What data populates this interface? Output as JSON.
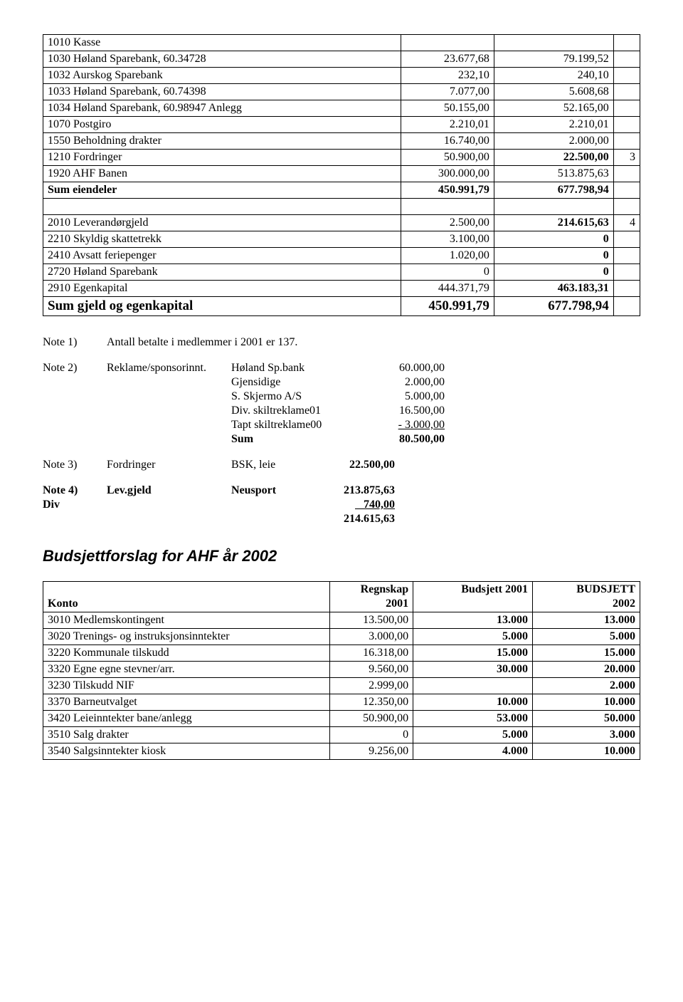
{
  "balance": {
    "rows": [
      {
        "label": "1010 Kasse",
        "a": "",
        "b": "",
        "c": ""
      },
      {
        "label": "1030 Høland Sparebank, 60.34728",
        "a": "23.677,68",
        "b": "79.199,52",
        "c": ""
      },
      {
        "label": "1032 Aurskog Sparebank",
        "a": "232,10",
        "b": "240,10",
        "c": ""
      },
      {
        "label": "1033 Høland Sparebank, 60.74398",
        "a": "7.077,00",
        "b": "5.608,68",
        "c": ""
      },
      {
        "label": "1034 Høland Sparebank, 60.98947 Anlegg",
        "a": "50.155,00",
        "b": "52.165,00",
        "c": ""
      },
      {
        "label": "1070 Postgiro",
        "a": "2.210,01",
        "b": "2.210,01",
        "c": ""
      },
      {
        "label": "1550 Beholdning drakter",
        "a": "16.740,00",
        "b": "2.000,00",
        "c": ""
      },
      {
        "label": "1210 Fordringer",
        "a": "50.900,00",
        "b": "22.500,00",
        "c": "3",
        "bbold": true
      },
      {
        "label": "1920 AHF Banen",
        "a": "300.000,00",
        "b": "513.875,63",
        "c": ""
      },
      {
        "label": "Sum eiendeler",
        "a": "450.991,79",
        "b": "677.798,94",
        "c": "",
        "lbold": true,
        "abold": true,
        "bbold": true
      },
      {
        "empty": true
      },
      {
        "label": "2010 Leverandørgjeld",
        "a": "2.500,00",
        "b": "214.615,63",
        "c": "4",
        "bbold": true
      },
      {
        "label": "2210 Skyldig skattetrekk",
        "a": "3.100,00",
        "b": "0",
        "c": "",
        "bbold": true
      },
      {
        "label": "2410 Avsatt feriepenger",
        "a": "1.020,00",
        "b": "0",
        "c": "",
        "bbold": true
      },
      {
        "label": "2720 Høland Sparebank",
        "a": "0",
        "b": "0",
        "c": "",
        "bbold": true
      },
      {
        "label": "2910 Egenkapital",
        "a": "444.371,79",
        "b": "463.183,31",
        "c": "",
        "bbold": true
      },
      {
        "label": "Sum gjeld og egenkapital",
        "a": "450.991,79",
        "b": "677.798,94",
        "c": "",
        "lbold": true,
        "big": true,
        "bbold": true
      }
    ]
  },
  "notes": {
    "n1": {
      "label": "Note 1)",
      "text": "Antall betalte i medlemmer i 2001 er 137."
    },
    "n2": {
      "label": "Note 2)",
      "desc": "Reklame/sponsorinnt.",
      "lines": [
        {
          "k": "Høland Sp.bank",
          "v": "60.000,00"
        },
        {
          "k": "Gjensidige",
          "v": "2.000,00"
        },
        {
          "k": "S. Skjermo A/S",
          "v": "5.000,00"
        },
        {
          "k": "Div. skiltreklame01",
          "v": "16.500,00"
        },
        {
          "k": "Tapt skiltreklame00",
          "v": "- 3.000,00",
          "u": true
        },
        {
          "k": "Sum",
          "v": "80.500,00",
          "bold": true
        }
      ]
    },
    "n3": {
      "label": "Note 3)",
      "desc": "Fordringer",
      "k": "BSK, leie",
      "v": "22.500,00"
    },
    "n4": {
      "label": "Note 4)",
      "desc": "Lev.gjeld",
      "k": "Neusport",
      "v": "213.875,63",
      "div_label": "Div",
      "div_v": "   740,00",
      "sum": "214.615,63"
    }
  },
  "budget": {
    "title": "Budsjettforslag for AHF år 2002",
    "header": {
      "c0": "Konto",
      "c1a": "Regnskap",
      "c1b": "2001",
      "c2": "Budsjett 2001",
      "c3a": "BUDSJETT",
      "c3b": "2002"
    },
    "rows": [
      {
        "label": "3010 Medlemskontingent",
        "a": "13.500,00",
        "b": "13.000",
        "c": "13.000"
      },
      {
        "label": "3020 Trenings- og instruksjonsinntekter",
        "a": "3.000,00",
        "b": "5.000",
        "c": "5.000"
      },
      {
        "label": "3220 Kommunale tilskudd",
        "a": "16.318,00",
        "b": "15.000",
        "c": "15.000"
      },
      {
        "label": "3320 Egne egne stevner/arr.",
        "a": "9.560,00",
        "b": "30.000",
        "c": "20.000"
      },
      {
        "label": "3230 Tilskudd NIF",
        "a": "2.999,00",
        "b": "",
        "c": "2.000"
      },
      {
        "label": "3370 Barneutvalget",
        "a": "12.350,00",
        "b": "10.000",
        "c": "10.000"
      },
      {
        "label": "3420 Leieinntekter bane/anlegg",
        "a": "50.900,00",
        "b": "53.000",
        "c": "50.000"
      },
      {
        "label": "3510 Salg drakter",
        "a": "0",
        "b": "5.000",
        "c": "3.000"
      },
      {
        "label": "3540 Salgsinntekter kiosk",
        "a": "9.256,00",
        "b": "4.000",
        "c": "10.000"
      }
    ]
  }
}
